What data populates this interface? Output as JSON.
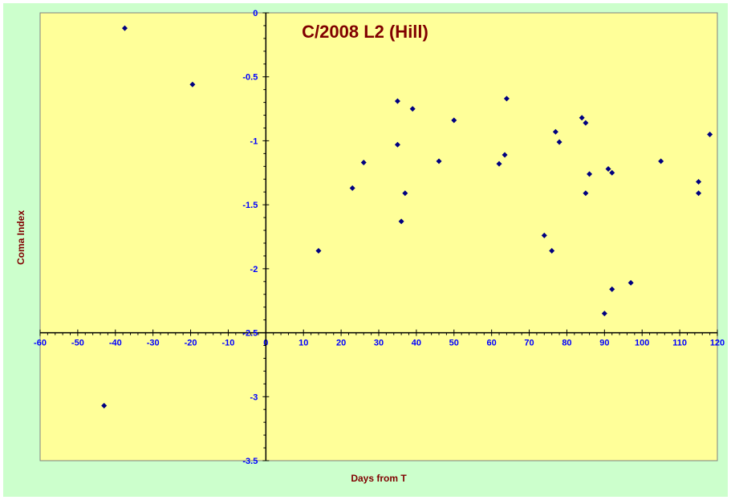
{
  "chart_data": {
    "type": "scatter",
    "title": "C/2008 L2 (Hill)",
    "xlabel": "Days from T",
    "ylabel": "Coma Index",
    "xlim": [
      -60,
      120
    ],
    "ylim": [
      -3.5,
      0
    ],
    "x_axis_crosses_y_at": -2.5,
    "y_axis_crosses_x_at": 0,
    "x_ticks": [
      -60,
      -50,
      -40,
      -30,
      -20,
      -10,
      0,
      10,
      20,
      30,
      40,
      50,
      60,
      70,
      80,
      90,
      100,
      110,
      120
    ],
    "y_ticks": [
      0,
      -0.5,
      -1,
      -1.5,
      -2,
      -2.5,
      -3,
      -3.5
    ],
    "x_tick_labels": [
      "-60",
      "-50",
      "-40",
      "-30",
      "-20",
      "-10",
      "0",
      "10",
      "20",
      "30",
      "40",
      "50",
      "60",
      "70",
      "80",
      "90",
      "100",
      "110",
      "120"
    ],
    "y_tick_labels": [
      "0",
      "-0.5",
      "-1",
      "-1.5",
      "-2",
      "-2.5",
      "-3",
      "-3.5"
    ],
    "grid": false,
    "legend": "none",
    "colors": {
      "outer_background": "#ccffcc",
      "plot_background": "#ffff99",
      "marker": "#000080",
      "tick_labels": "#0000ff",
      "title": "#800000",
      "axis_titles": "#800000",
      "axis_lines": "#000000"
    },
    "points": [
      {
        "x": -43,
        "y": -3.07
      },
      {
        "x": -37.5,
        "y": -0.12
      },
      {
        "x": -19.5,
        "y": -0.56
      },
      {
        "x": 14,
        "y": -1.86
      },
      {
        "x": 23,
        "y": -1.37
      },
      {
        "x": 26,
        "y": -1.17
      },
      {
        "x": 35,
        "y": -0.69
      },
      {
        "x": 35,
        "y": -1.03
      },
      {
        "x": 36,
        "y": -1.63
      },
      {
        "x": 37,
        "y": -1.41
      },
      {
        "x": 39,
        "y": -0.75
      },
      {
        "x": 46,
        "y": -1.16
      },
      {
        "x": 50,
        "y": -0.84
      },
      {
        "x": 62,
        "y": -1.18
      },
      {
        "x": 63.5,
        "y": -1.11
      },
      {
        "x": 64,
        "y": -0.67
      },
      {
        "x": 74,
        "y": -1.74
      },
      {
        "x": 76,
        "y": -1.86
      },
      {
        "x": 77,
        "y": -0.93
      },
      {
        "x": 78,
        "y": -1.01
      },
      {
        "x": 84,
        "y": -0.82
      },
      {
        "x": 85,
        "y": -0.86
      },
      {
        "x": 85,
        "y": -1.41
      },
      {
        "x": 86,
        "y": -1.26
      },
      {
        "x": 90,
        "y": -2.35
      },
      {
        "x": 91,
        "y": -1.22
      },
      {
        "x": 92,
        "y": -1.25
      },
      {
        "x": 92,
        "y": -2.16
      },
      {
        "x": 97,
        "y": -2.11
      },
      {
        "x": 105,
        "y": -1.16
      },
      {
        "x": 115,
        "y": -1.32
      },
      {
        "x": 115,
        "y": -1.41
      },
      {
        "x": 118,
        "y": -0.95
      }
    ]
  }
}
